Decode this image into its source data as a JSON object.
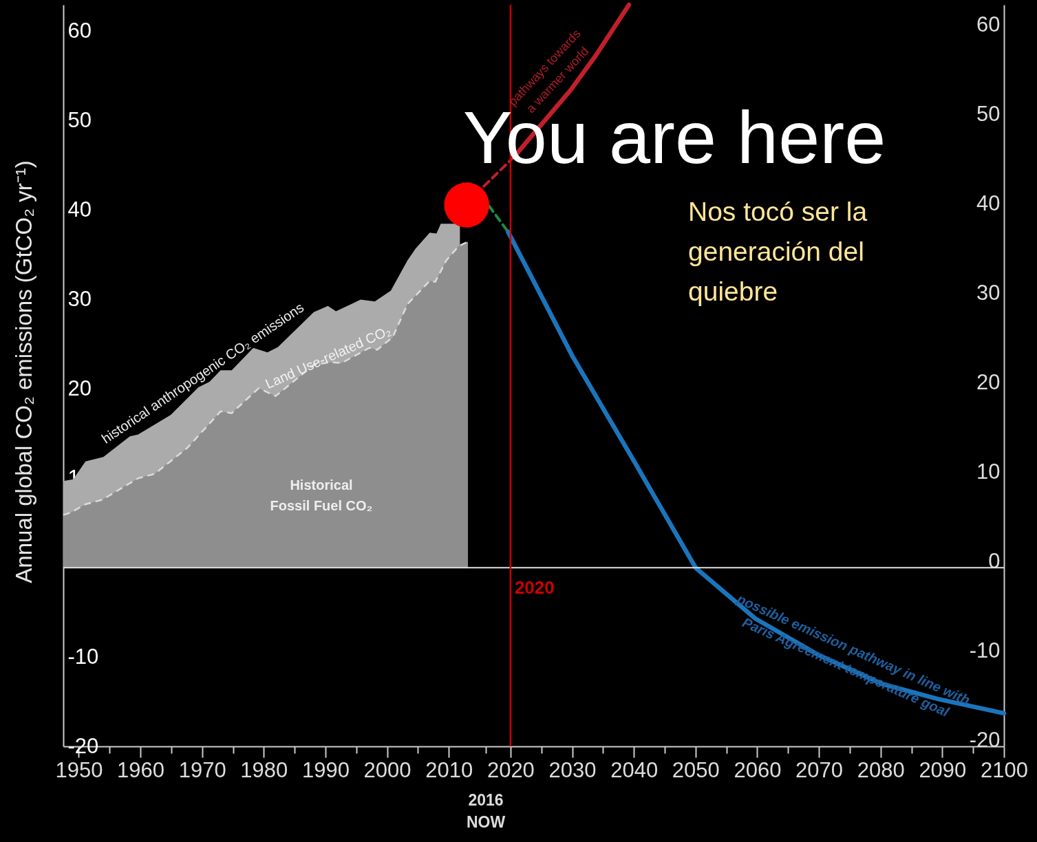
{
  "chart_data": {
    "type": "area",
    "ylabel": "Annual global CO₂ emissions (GtCO₂ yr⁻¹)",
    "xlim": [
      1947.5,
      2100
    ],
    "ylim": [
      -20,
      63
    ],
    "y2lim": [
      -20,
      63
    ],
    "xticks": [
      1950,
      {
        "value": 1955,
        "label": null
      },
      1960,
      {
        "value": 1965,
        "label": null
      },
      1970,
      {
        "value": 1975,
        "label": null
      },
      1980,
      {
        "value": 1985,
        "label": null
      },
      1990,
      {
        "value": 1995,
        "label": null
      },
      2000,
      {
        "value": 2005,
        "label": null
      },
      2010,
      {
        "value": 2016,
        "label": null
      },
      2020,
      {
        "value": 2025,
        "label": null
      },
      2030,
      {
        "value": 2035,
        "label": null
      },
      2040,
      {
        "value": 2045,
        "label": null
      },
      2050,
      {
        "value": 2055,
        "label": null
      },
      2060,
      {
        "value": 2065,
        "label": null
      },
      2070,
      {
        "value": 2075,
        "label": null
      },
      2080,
      {
        "value": 2085,
        "label": null
      },
      2090,
      {
        "value": 2095,
        "label": null
      },
      2100
    ],
    "yticks": [
      -20,
      -10,
      10,
      20,
      30,
      40,
      50,
      60
    ],
    "y2ticks": [
      -20,
      -10,
      0,
      10,
      20,
      30,
      40,
      50,
      60
    ],
    "grid": false,
    "series": [
      {
        "color": "#ababab",
        "x": [
          1947.5,
          1949.1,
          1951.1,
          1954,
          1958.3,
          1959.6,
          1964.9,
          1969.4,
          1971.2,
          1973,
          1974.8,
          1978.3,
          1980.6,
          1982.3,
          1988.1,
          1990.4,
          1991.7,
          1995.7,
          1998,
          2000.6,
          2003.3,
          2004.6,
          2006.9,
          2008,
          2008.7,
          2011.8
        ],
        "values": [
          9.7,
          9.9,
          11.9,
          12.4,
          14.7,
          14.9,
          17.1,
          20.2,
          20.8,
          22.1,
          22.1,
          24.6,
          24.1,
          24.7,
          28.6,
          29.3,
          28.7,
          30.0,
          29.8,
          31.0,
          34.4,
          35.7,
          37.5,
          37.4,
          38.5,
          38.5
        ]
      },
      {
        "color": "#8e8e8f",
        "line_style": "dashed",
        "x": [
          1947.5,
          1948.8,
          1951.1,
          1953.8,
          1959.6,
          1962.3,
          1967.6,
          1973,
          1974.8,
          1979.2,
          1981.9,
          1988.1,
          1990.8,
          1992.6,
          1997.1,
          1998.4,
          2000.9,
          2003.3,
          2006.9,
          2007.8,
          2009.6,
          2011.6,
          2013.1
        ],
        "values": [
          5.9,
          6.2,
          7.1,
          7.6,
          10.0,
          10.5,
          13.4,
          17.5,
          17.3,
          20.1,
          19.2,
          22.7,
          23.0,
          22.9,
          24.6,
          24.4,
          25.8,
          29.5,
          32.1,
          32.0,
          34.4,
          36.0,
          36.5
        ]
      },
      {
        "type": "line",
        "color": "#1a9040",
        "line_style": "dashed",
        "x": [
          2016.5,
          2019.6
        ],
        "values": [
          40.5,
          37.6
        ]
      },
      {
        "type": "line",
        "color": "#1b75bc",
        "x": [
          2019.6,
          2030.1,
          2039.8,
          2050,
          2059.7,
          2070,
          2080.2,
          2089.3,
          2100
        ],
        "values": [
          37.6,
          23.6,
          12.2,
          0,
          -5.7,
          -9.8,
          -13.0,
          -14.7,
          -16.3
        ]
      },
      {
        "type": "line",
        "color": "#c0202a",
        "line_style": "dashed",
        "x": [
          2015.7,
          2020.6
        ],
        "values": [
          42.7,
          46.0
        ]
      },
      {
        "type": "line",
        "color": "#c0202a",
        "x": [
          2020.6,
          2025,
          2029.8,
          2033.9,
          2039.2
        ],
        "values": [
          46.0,
          49.6,
          53.5,
          57.4,
          63
        ]
      },
      {
        "type": "scatter",
        "color": "#ff0000",
        "marker": "circle",
        "x": [
          2012.9
        ],
        "values": [
          40.6
        ]
      }
    ],
    "ref_lines": [
      {
        "axis": "y",
        "value": 0,
        "color": "#e0e0e0"
      },
      {
        "axis": "x",
        "value": 2020,
        "label": "2020",
        "color": "#cc0000"
      }
    ],
    "annotations": [
      "You are here",
      "Nos tocó ser la\ngeneración del\nquiebre",
      "historical anthropogenic CO₂ emissions",
      "Land Use-related CO₂",
      "Historical\nFossil Fuel CO₂",
      "pathways towards\na warmer world",
      "possible emission pathway in line with\nParis Agreement temperature goal",
      "2016\nNOW"
    ]
  }
}
